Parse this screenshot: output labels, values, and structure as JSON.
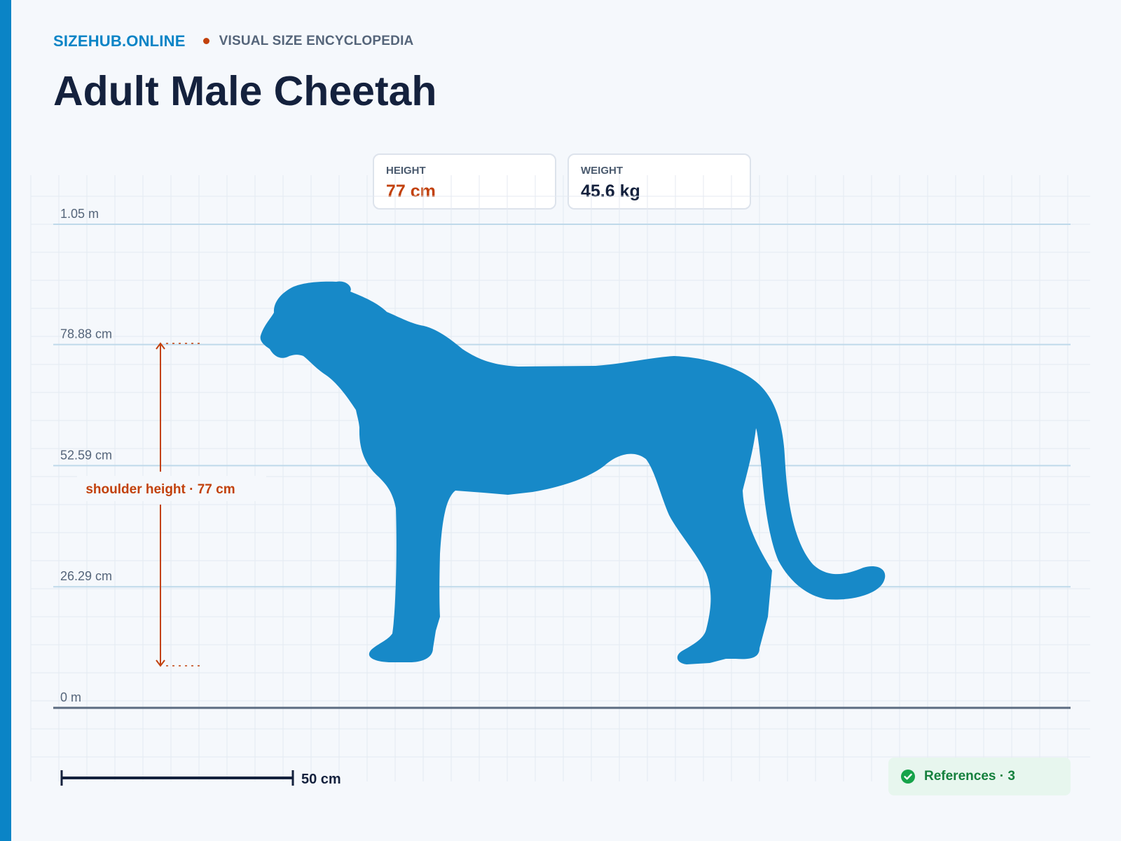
{
  "site": {
    "brand": "SIZEHUB.ONLINE",
    "tagline": "VISUAL SIZE ENCYCLOPEDIA"
  },
  "page": {
    "title": "Adult Male Cheetah"
  },
  "stats": {
    "height": {
      "label": "HEIGHT",
      "value": "77 cm"
    },
    "weight": {
      "label": "WEIGHT",
      "value": "45.6 kg"
    }
  },
  "scale": {
    "tick_labels": [
      "1.05 m",
      "78.88 cm",
      "52.59 cm",
      "26.29 cm",
      "0 m"
    ],
    "tick_values_cm": [
      105,
      78.88,
      52.59,
      26.29,
      0
    ],
    "max_cm": 105,
    "shoulder_height_cm": 77,
    "annotation": "shoulder height · 77 cm",
    "bar_length_cm": 50,
    "bar_label": "50 cm"
  },
  "silhouette": {
    "icon": "cheetah-silhouette",
    "color": "#1789c8"
  },
  "references": {
    "label": "References · 3",
    "icon": "check-circle-icon"
  },
  "colors": {
    "accent": "#0a84c6",
    "highlight": "#c2410c",
    "text": "#14213d",
    "references": "#15803d"
  }
}
